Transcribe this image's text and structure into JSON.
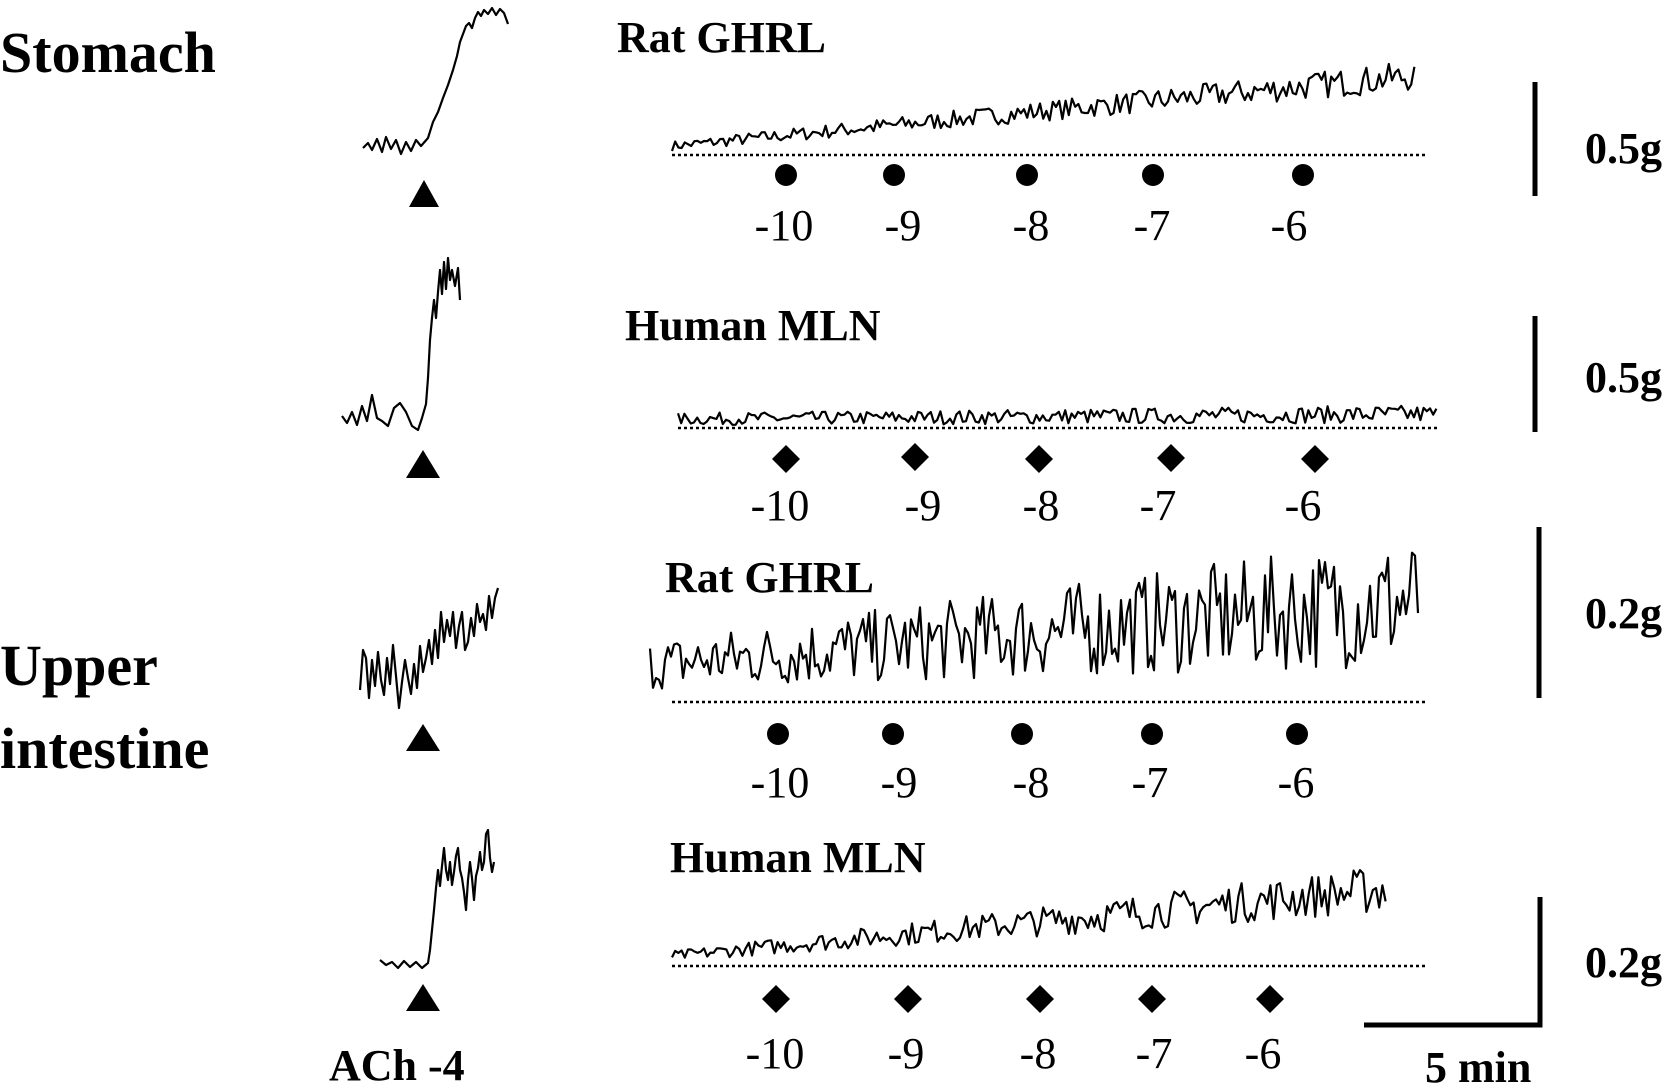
{
  "regions": [
    {
      "label": "Stomach"
    },
    {
      "label": "Upper\nintestine"
    }
  ],
  "reference": {
    "label": "ACh -4"
  },
  "rows": [
    {
      "title": "Rat GHRL",
      "marker": "circle",
      "doses": [
        "-10",
        "-9",
        "-8",
        "-7",
        "-6"
      ],
      "scale": "0.5g"
    },
    {
      "title": "Human MLN",
      "marker": "diamond",
      "doses": [
        "-10",
        "-9",
        "-8",
        "-7",
        "-6"
      ],
      "scale": "0.5g"
    },
    {
      "title": "Rat GHRL",
      "marker": "circle",
      "doses": [
        "-10",
        "-9",
        "-8",
        "-7",
        "-6"
      ],
      "scale": "0.2g"
    },
    {
      "title": "Human MLN",
      "marker": "diamond",
      "doses": [
        "-10",
        "-9",
        "-8",
        "-7",
        "-6"
      ],
      "scale": "0.2g"
    }
  ],
  "time_scale": {
    "label": "5 min"
  }
}
